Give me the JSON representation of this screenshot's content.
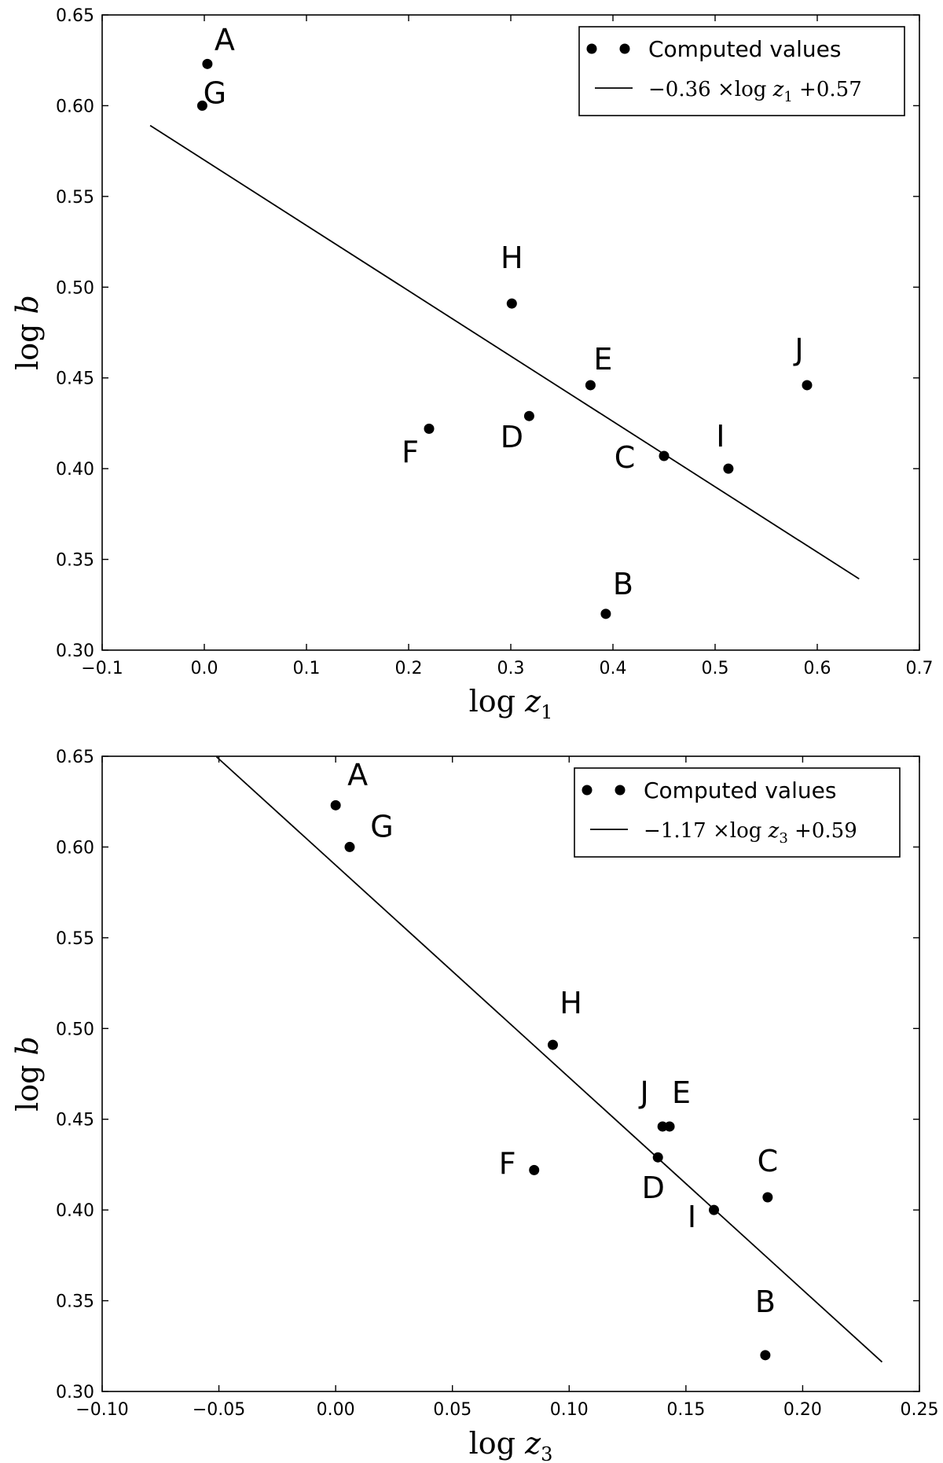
{
  "chart_data": [
    {
      "type": "scatter",
      "xlabel": "log z1",
      "ylabel": "log b",
      "xlim": [
        -0.1,
        0.7
      ],
      "ylim": [
        0.3,
        0.65
      ],
      "xticks": [
        "−0.1",
        "0.0",
        "0.1",
        "0.2",
        "0.3",
        "0.4",
        "0.5",
        "0.6",
        "0.7"
      ],
      "yticks": [
        "0.30",
        "0.35",
        "0.40",
        "0.45",
        "0.50",
        "0.55",
        "0.60",
        "0.65"
      ],
      "legend_position": "top-right",
      "series": [
        {
          "name": "Computed values",
          "points": [
            {
              "label": "A",
              "x": 0.003,
              "y": 0.623
            },
            {
              "label": "B",
              "x": 0.393,
              "y": 0.32
            },
            {
              "label": "C",
              "x": 0.45,
              "y": 0.407
            },
            {
              "label": "D",
              "x": 0.318,
              "y": 0.429
            },
            {
              "label": "E",
              "x": 0.378,
              "y": 0.446
            },
            {
              "label": "F",
              "x": 0.22,
              "y": 0.422
            },
            {
              "label": "G",
              "x": -0.002,
              "y": 0.6
            },
            {
              "label": "H",
              "x": 0.301,
              "y": 0.491
            },
            {
              "label": "I",
              "x": 0.513,
              "y": 0.4
            },
            {
              "label": "J",
              "x": 0.59,
              "y": 0.446
            }
          ]
        },
        {
          "name": "−0.36 ×log z1 +0.57",
          "fit": {
            "slope": -0.36,
            "intercept": 0.57
          },
          "line_x": [
            -0.053,
            0.641
          ]
        }
      ]
    },
    {
      "type": "scatter",
      "xlabel": "log z3",
      "ylabel": "log b",
      "xlim": [
        -0.1,
        0.25
      ],
      "ylim": [
        0.3,
        0.65
      ],
      "xticks": [
        "−0.10",
        "−0.05",
        "0.00",
        "0.05",
        "0.10",
        "0.15",
        "0.20",
        "0.25"
      ],
      "yticks": [
        "0.30",
        "0.35",
        "0.40",
        "0.45",
        "0.50",
        "0.55",
        "0.60",
        "0.65"
      ],
      "legend_position": "top-right",
      "series": [
        {
          "name": "Computed values",
          "points": [
            {
              "label": "A",
              "x": 0.0,
              "y": 0.623
            },
            {
              "label": "B",
              "x": 0.184,
              "y": 0.32
            },
            {
              "label": "C",
              "x": 0.185,
              "y": 0.407
            },
            {
              "label": "D",
              "x": 0.138,
              "y": 0.429
            },
            {
              "label": "E",
              "x": 0.143,
              "y": 0.446
            },
            {
              "label": "F",
              "x": 0.085,
              "y": 0.422
            },
            {
              "label": "G",
              "x": 0.006,
              "y": 0.6
            },
            {
              "label": "H",
              "x": 0.093,
              "y": 0.491
            },
            {
              "label": "I",
              "x": 0.162,
              "y": 0.4
            },
            {
              "label": "J",
              "x": 0.14,
              "y": 0.446
            }
          ]
        },
        {
          "name": "−1.17 ×log z3 +0.59",
          "fit": {
            "slope": -1.17,
            "intercept": 0.59
          },
          "line_x": [
            -0.051,
            0.234
          ]
        }
      ]
    }
  ]
}
